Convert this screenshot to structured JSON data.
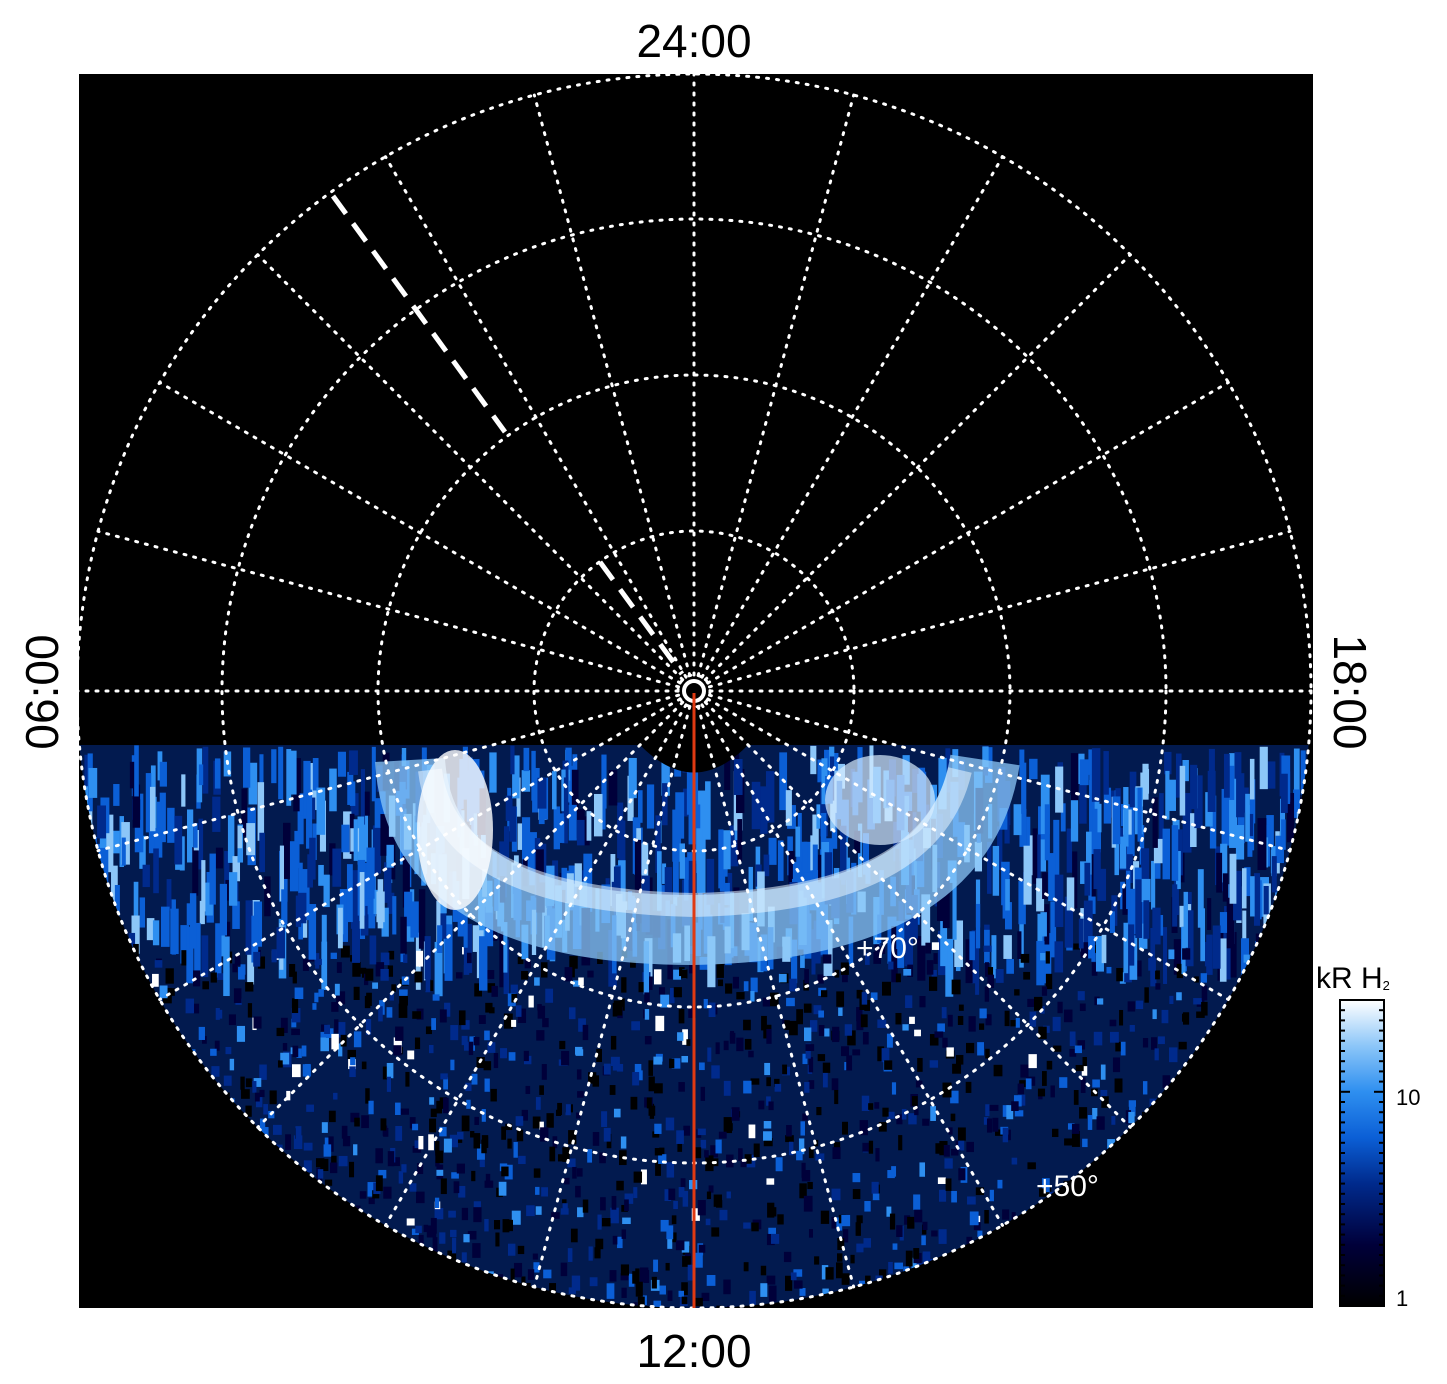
{
  "lt_labels": {
    "top": "24:00",
    "bottom": "12:00",
    "left": "06:00",
    "right": "18:00"
  },
  "lat_labels": {
    "inner": "+70°",
    "outer": "+50°"
  },
  "colorbar": {
    "title": "kR H",
    "title_sub": "2",
    "tick_high": "10",
    "tick_low": "1",
    "colors": [
      "#000000",
      "#00003a",
      "#002a8c",
      "#0b5fd6",
      "#2e8ff0",
      "#8cc6f8",
      "#ffffff"
    ]
  },
  "colors": {
    "background": "#000000",
    "grid": "#ffffff",
    "meridian": "#e03a12",
    "emission_dim": "#04266e",
    "emission_mid": "#1f7fe6",
    "emission_bright": "#e8f5ff"
  }
}
